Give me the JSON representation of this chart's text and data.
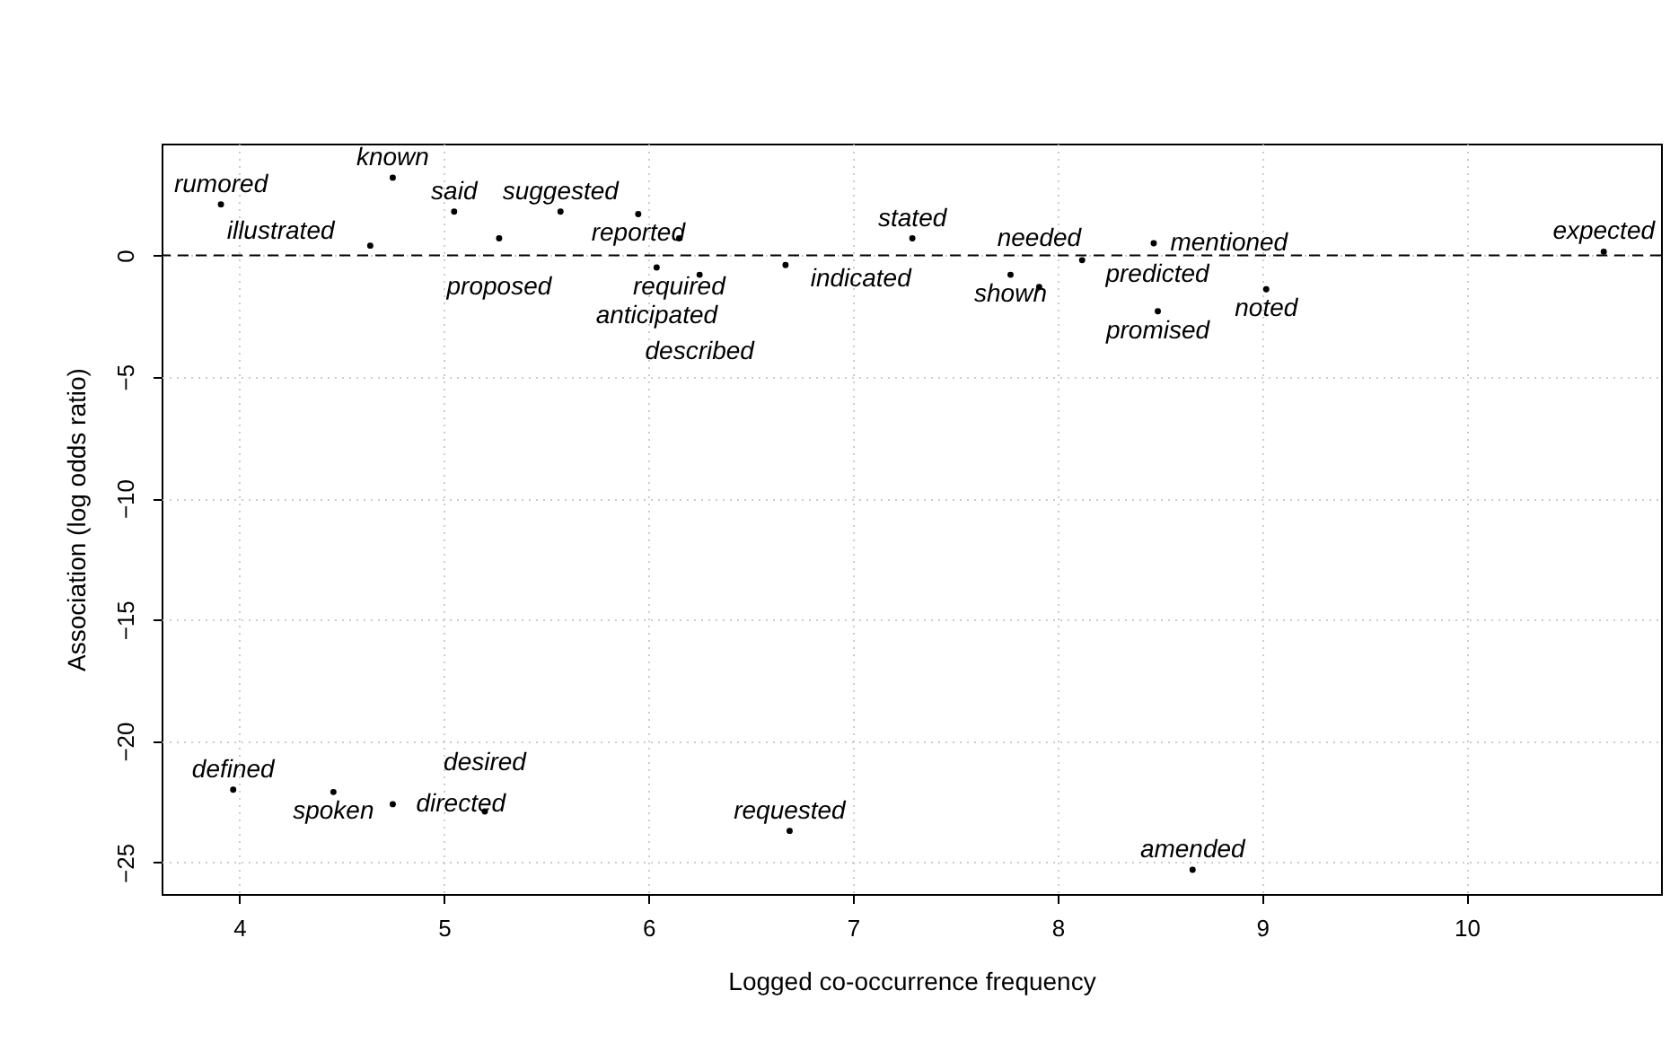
{
  "chart_data": {
    "type": "scatter",
    "xlabel": "Logged co-occurrence frequency",
    "ylabel": "Association (log odds ratio)",
    "marker": "circle",
    "grid": true,
    "color": "#000000",
    "xlim": [
      3.62,
      10.95
    ],
    "xticks": [
      4,
      5,
      6,
      7,
      8,
      9,
      10
    ],
    "ylim": [
      -26.3,
      4.6
    ],
    "yticks": [
      0,
      -5,
      -10,
      -15,
      -20,
      -25
    ],
    "ref_lines": [
      {
        "axis": "y",
        "value": 0,
        "line_style": "dashed"
      }
    ],
    "x": [
      3.91,
      4.75,
      5.05,
      5.57,
      5.95,
      4.64,
      5.27,
      6.15,
      6.04,
      6.25,
      6.67,
      7.29,
      7.77,
      7.91,
      8.12,
      8.47,
      8.49,
      9.02,
      10.67,
      3.97,
      4.46,
      4.75,
      5.2,
      6.69,
      8.66
    ],
    "values": [
      2.1,
      3.2,
      1.8,
      1.8,
      1.7,
      0.4,
      0.7,
      0.7,
      -0.5,
      -0.8,
      -0.4,
      0.7,
      -0.8,
      -1.3,
      -0.2,
      0.5,
      -2.3,
      -1.4,
      0.15,
      -22.0,
      -22.1,
      -22.6,
      -22.9,
      -23.7,
      -25.3
    ],
    "value_labels": [
      "rumored",
      "known",
      "said",
      "suggested",
      "reported",
      "illustrated",
      "proposed",
      "required",
      "anticipated",
      "described",
      "indicated",
      "stated",
      "shown",
      "needed",
      "predicted",
      "mentioned",
      "promised",
      "noted",
      "expected",
      "defined",
      "spoken",
      "directed",
      "desired",
      "requested",
      "amended"
    ]
  }
}
